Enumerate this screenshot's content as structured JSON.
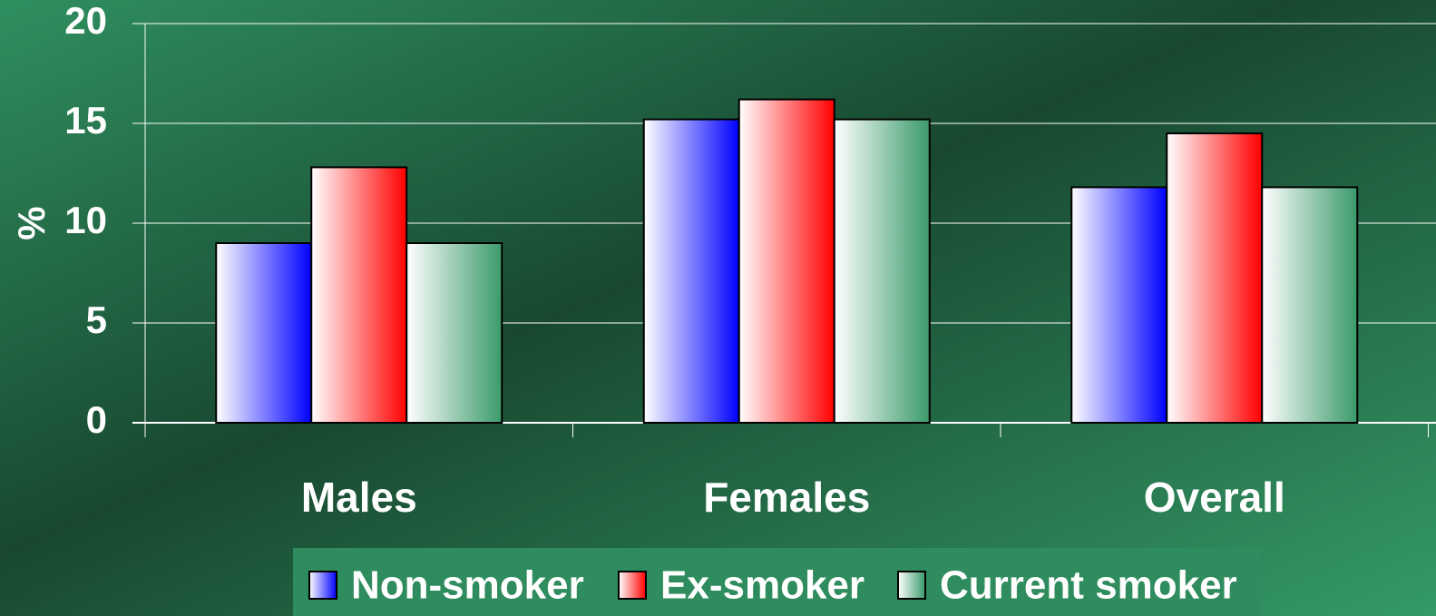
{
  "chart_data": {
    "type": "bar",
    "categories": [
      "Males",
      "Females",
      "Overall"
    ],
    "series": [
      {
        "name": "Non-smoker",
        "color": "#0000ff",
        "values": [
          9.0,
          15.2,
          11.8
        ]
      },
      {
        "name": "Ex-smoker",
        "color": "#ff0000",
        "values": [
          12.8,
          16.2,
          14.5
        ]
      },
      {
        "name": "Current smoker",
        "color": "#3a9a6a",
        "values": [
          9.0,
          15.2,
          11.8
        ]
      }
    ],
    "ylabel": "%",
    "ylim": [
      0,
      20
    ],
    "yticks": [
      0,
      5,
      10,
      15,
      20
    ],
    "grid": true,
    "legend": "bottom"
  }
}
